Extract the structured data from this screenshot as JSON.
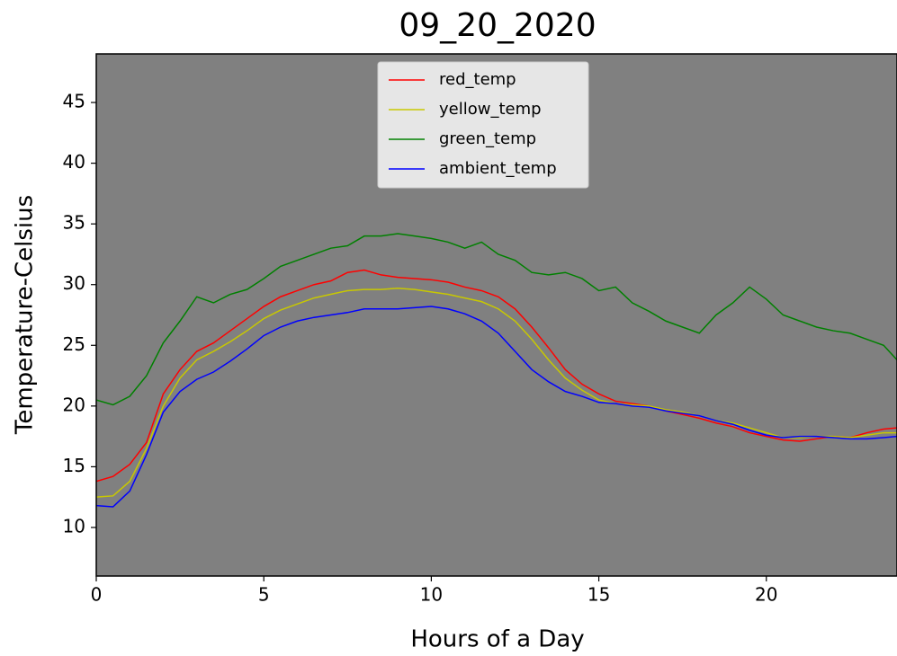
{
  "chart_data": {
    "type": "line",
    "title": "09_20_2020",
    "xlabel": "Hours of a Day",
    "ylabel": "Temperature-Celsius",
    "x": [
      0,
      0.5,
      1,
      1.5,
      2,
      2.5,
      3,
      3.5,
      4,
      4.5,
      5,
      5.5,
      6,
      6.5,
      7,
      7.5,
      8,
      8.5,
      9,
      9.5,
      10,
      10.5,
      11,
      11.5,
      12,
      12.5,
      13,
      13.5,
      14,
      14.5,
      15,
      15.5,
      16,
      16.5,
      17,
      17.5,
      18,
      18.5,
      19,
      19.5,
      20,
      20.5,
      21,
      21.5,
      22,
      22.5,
      23,
      23.5,
      23.9
    ],
    "series": [
      {
        "name": "red_temp",
        "color": "#ff0000",
        "values": [
          13.8,
          14.2,
          15.2,
          17,
          21,
          23,
          24.5,
          25.2,
          26.2,
          27.2,
          28.2,
          29,
          29.5,
          30,
          30.3,
          31,
          31.2,
          30.8,
          30.6,
          30.5,
          30.4,
          30.2,
          29.8,
          29.5,
          29,
          28,
          26.5,
          24.8,
          23,
          21.8,
          21,
          20.4,
          20.2,
          20,
          19.6,
          19.3,
          19,
          18.6,
          18.3,
          17.8,
          17.5,
          17.2,
          17.1,
          17.3,
          17.5,
          17.4,
          17.8,
          18.1,
          18.2
        ]
      },
      {
        "name": "yellow_temp",
        "color": "#c8c800",
        "values": [
          12.5,
          12.6,
          13.8,
          16.5,
          20,
          22.3,
          23.8,
          24.5,
          25.3,
          26.2,
          27.2,
          27.9,
          28.4,
          28.9,
          29.2,
          29.5,
          29.6,
          29.6,
          29.7,
          29.6,
          29.4,
          29.2,
          28.9,
          28.6,
          28,
          27,
          25.5,
          23.8,
          22.3,
          21.3,
          20.5,
          20.2,
          20.1,
          20,
          19.7,
          19.5,
          19.2,
          18.8,
          18.6,
          18.2,
          17.8,
          17.4,
          17.4,
          17.5,
          17.5,
          17.4,
          17.6,
          17.8,
          17.8
        ]
      },
      {
        "name": "green_temp",
        "color": "#008000",
        "values": [
          20.5,
          20.1,
          20.8,
          22.5,
          25.2,
          27,
          29,
          28.5,
          29.2,
          29.6,
          30.5,
          31.5,
          32,
          32.5,
          33,
          33.2,
          34,
          34,
          34.2,
          34,
          33.8,
          33.5,
          33,
          33.5,
          32.5,
          32,
          31,
          30.8,
          31,
          30.5,
          29.5,
          29.8,
          28.5,
          27.8,
          27,
          26.5,
          26,
          27.5,
          28.5,
          29.8,
          28.8,
          27.5,
          27,
          26.5,
          26.2,
          26,
          25.5,
          25,
          23.8
        ]
      },
      {
        "name": "ambient_temp",
        "color": "#0000ff",
        "values": [
          11.8,
          11.7,
          13,
          16,
          19.5,
          21.2,
          22.2,
          22.8,
          23.7,
          24.7,
          25.8,
          26.5,
          27,
          27.3,
          27.5,
          27.7,
          28,
          28,
          28,
          28.1,
          28.2,
          28,
          27.6,
          27,
          26,
          24.5,
          23,
          22,
          21.2,
          20.8,
          20.3,
          20.2,
          20,
          19.9,
          19.6,
          19.4,
          19.2,
          18.8,
          18.5,
          18,
          17.6,
          17.4,
          17.5,
          17.5,
          17.4,
          17.3,
          17.3,
          17.4,
          17.5
        ]
      }
    ],
    "xlim": [
      0,
      23.9
    ],
    "ylim": [
      6,
      49
    ],
    "xticks": [
      0,
      5,
      10,
      15,
      20
    ],
    "yticks": [
      10,
      15,
      20,
      25,
      30,
      35,
      40,
      45
    ],
    "legend": "upper center",
    "background": "#808080"
  }
}
